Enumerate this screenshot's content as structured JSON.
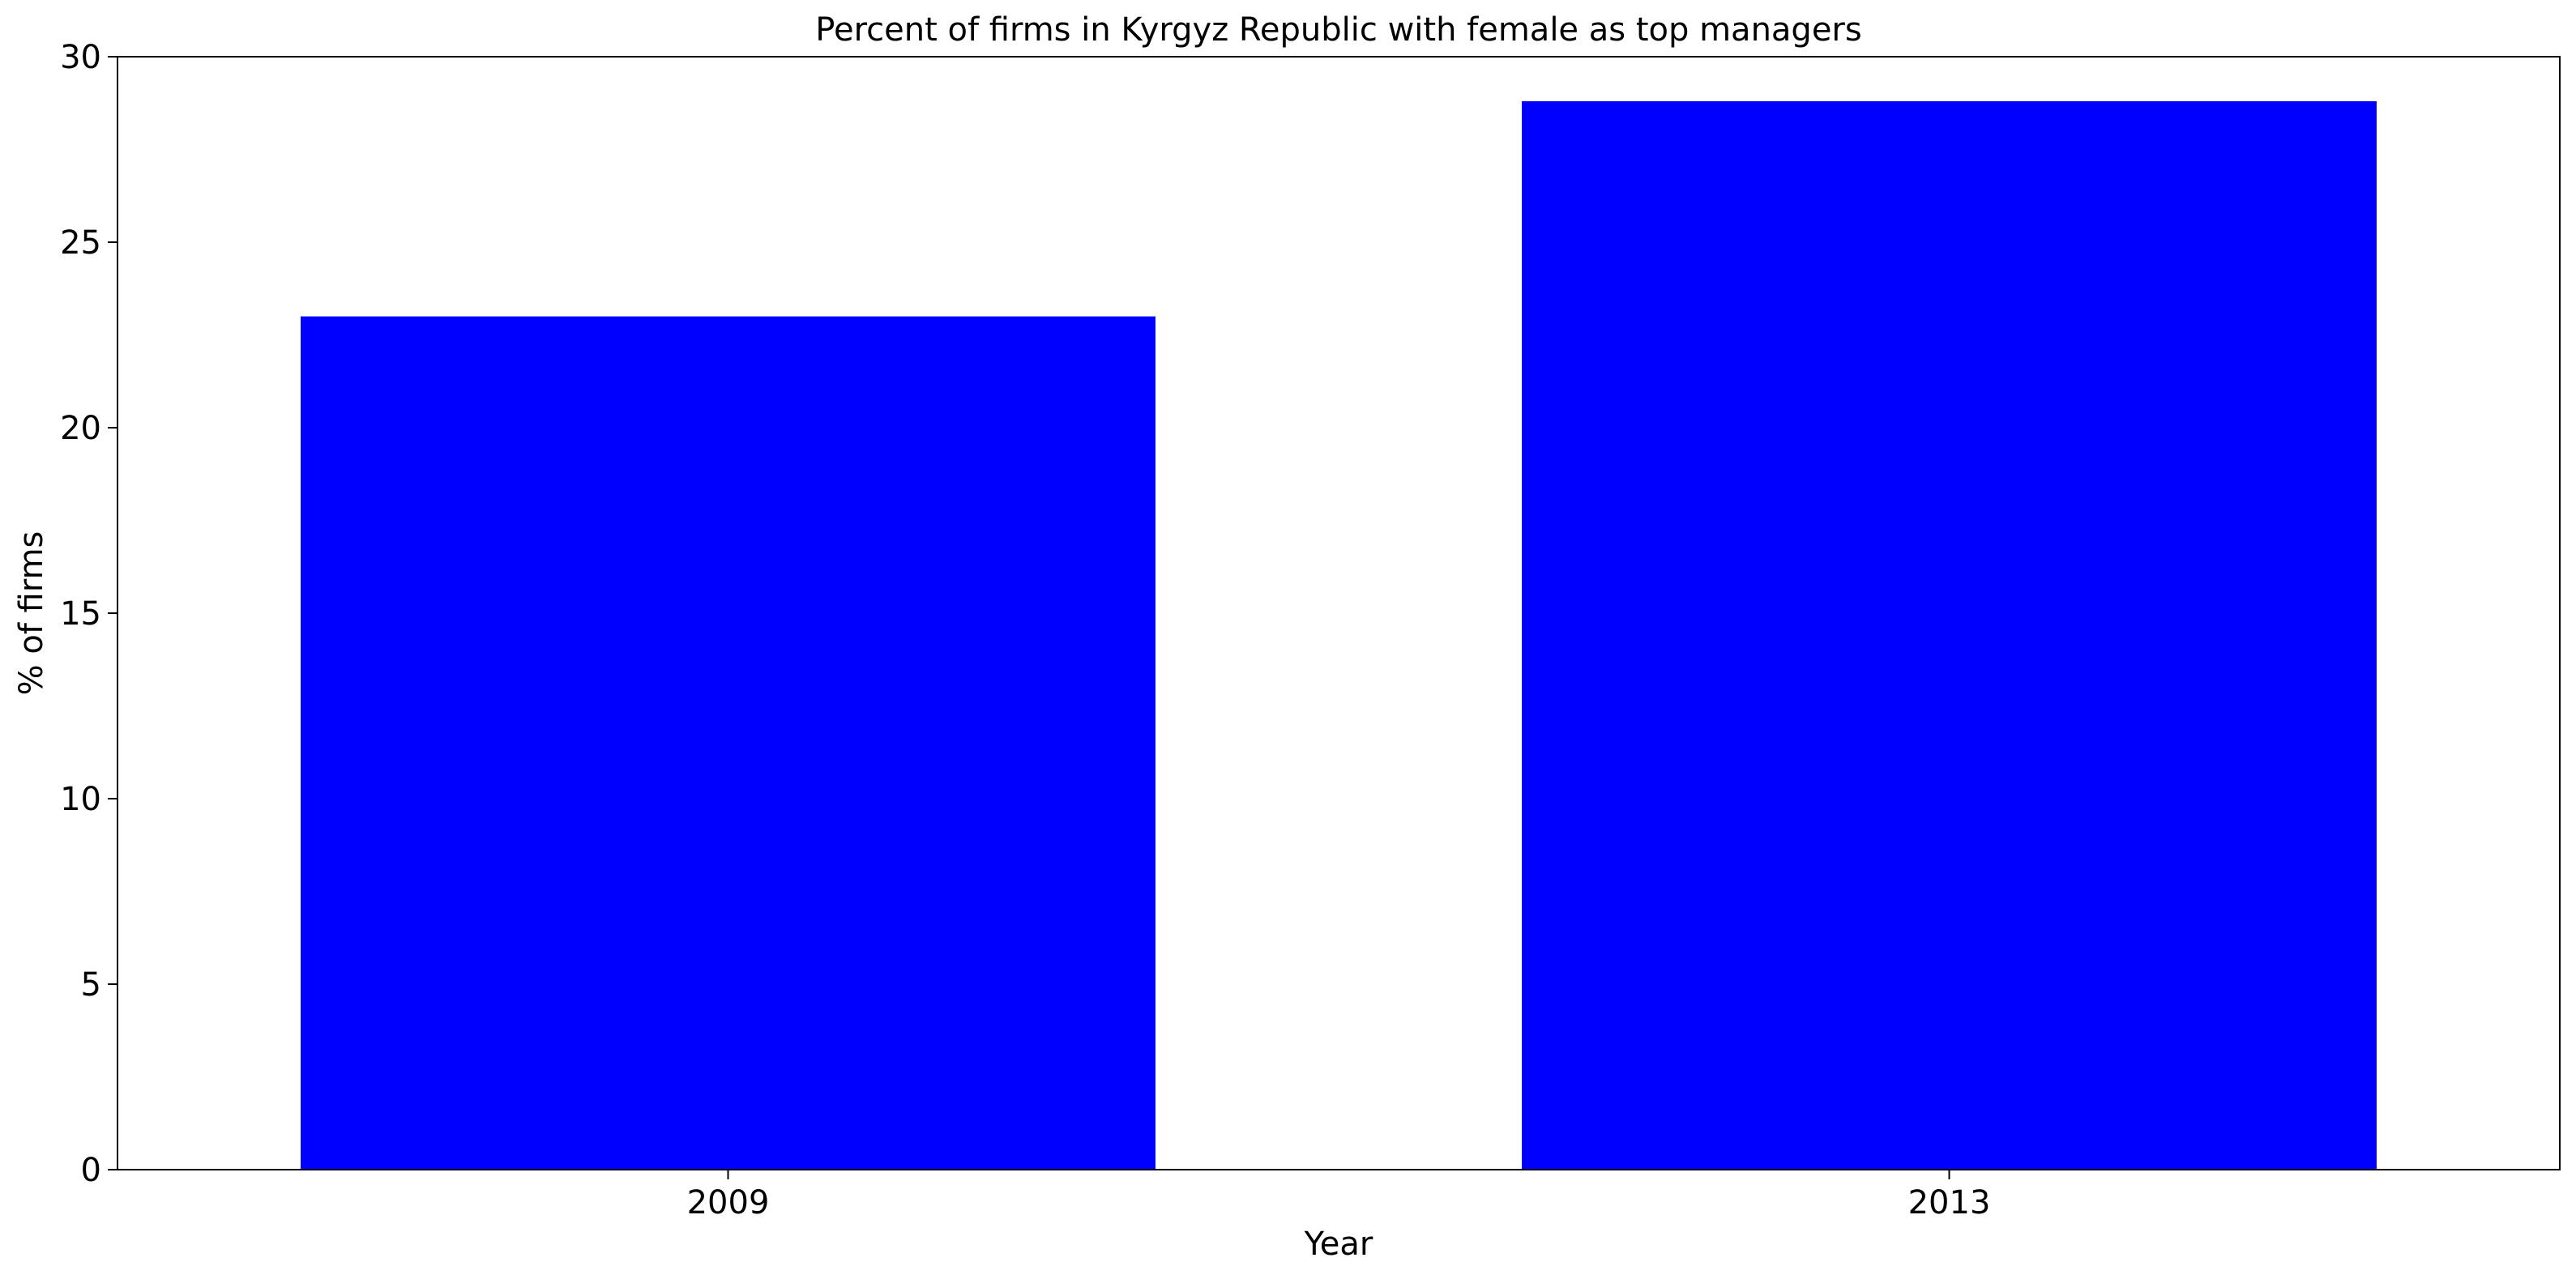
{
  "chart_data": {
    "type": "bar",
    "title": "Percent of firms in Kyrgyz Republic with female as top managers",
    "xlabel": "Year",
    "ylabel": "% of firms",
    "categories": [
      "2009",
      "2013"
    ],
    "values": [
      23.0,
      28.8
    ],
    "ylim": [
      0,
      30
    ],
    "yticks": [
      "0",
      "5",
      "10",
      "15",
      "20",
      "25",
      "30"
    ],
    "bar_color": "#0000ff",
    "grid": false,
    "legend": "none"
  }
}
